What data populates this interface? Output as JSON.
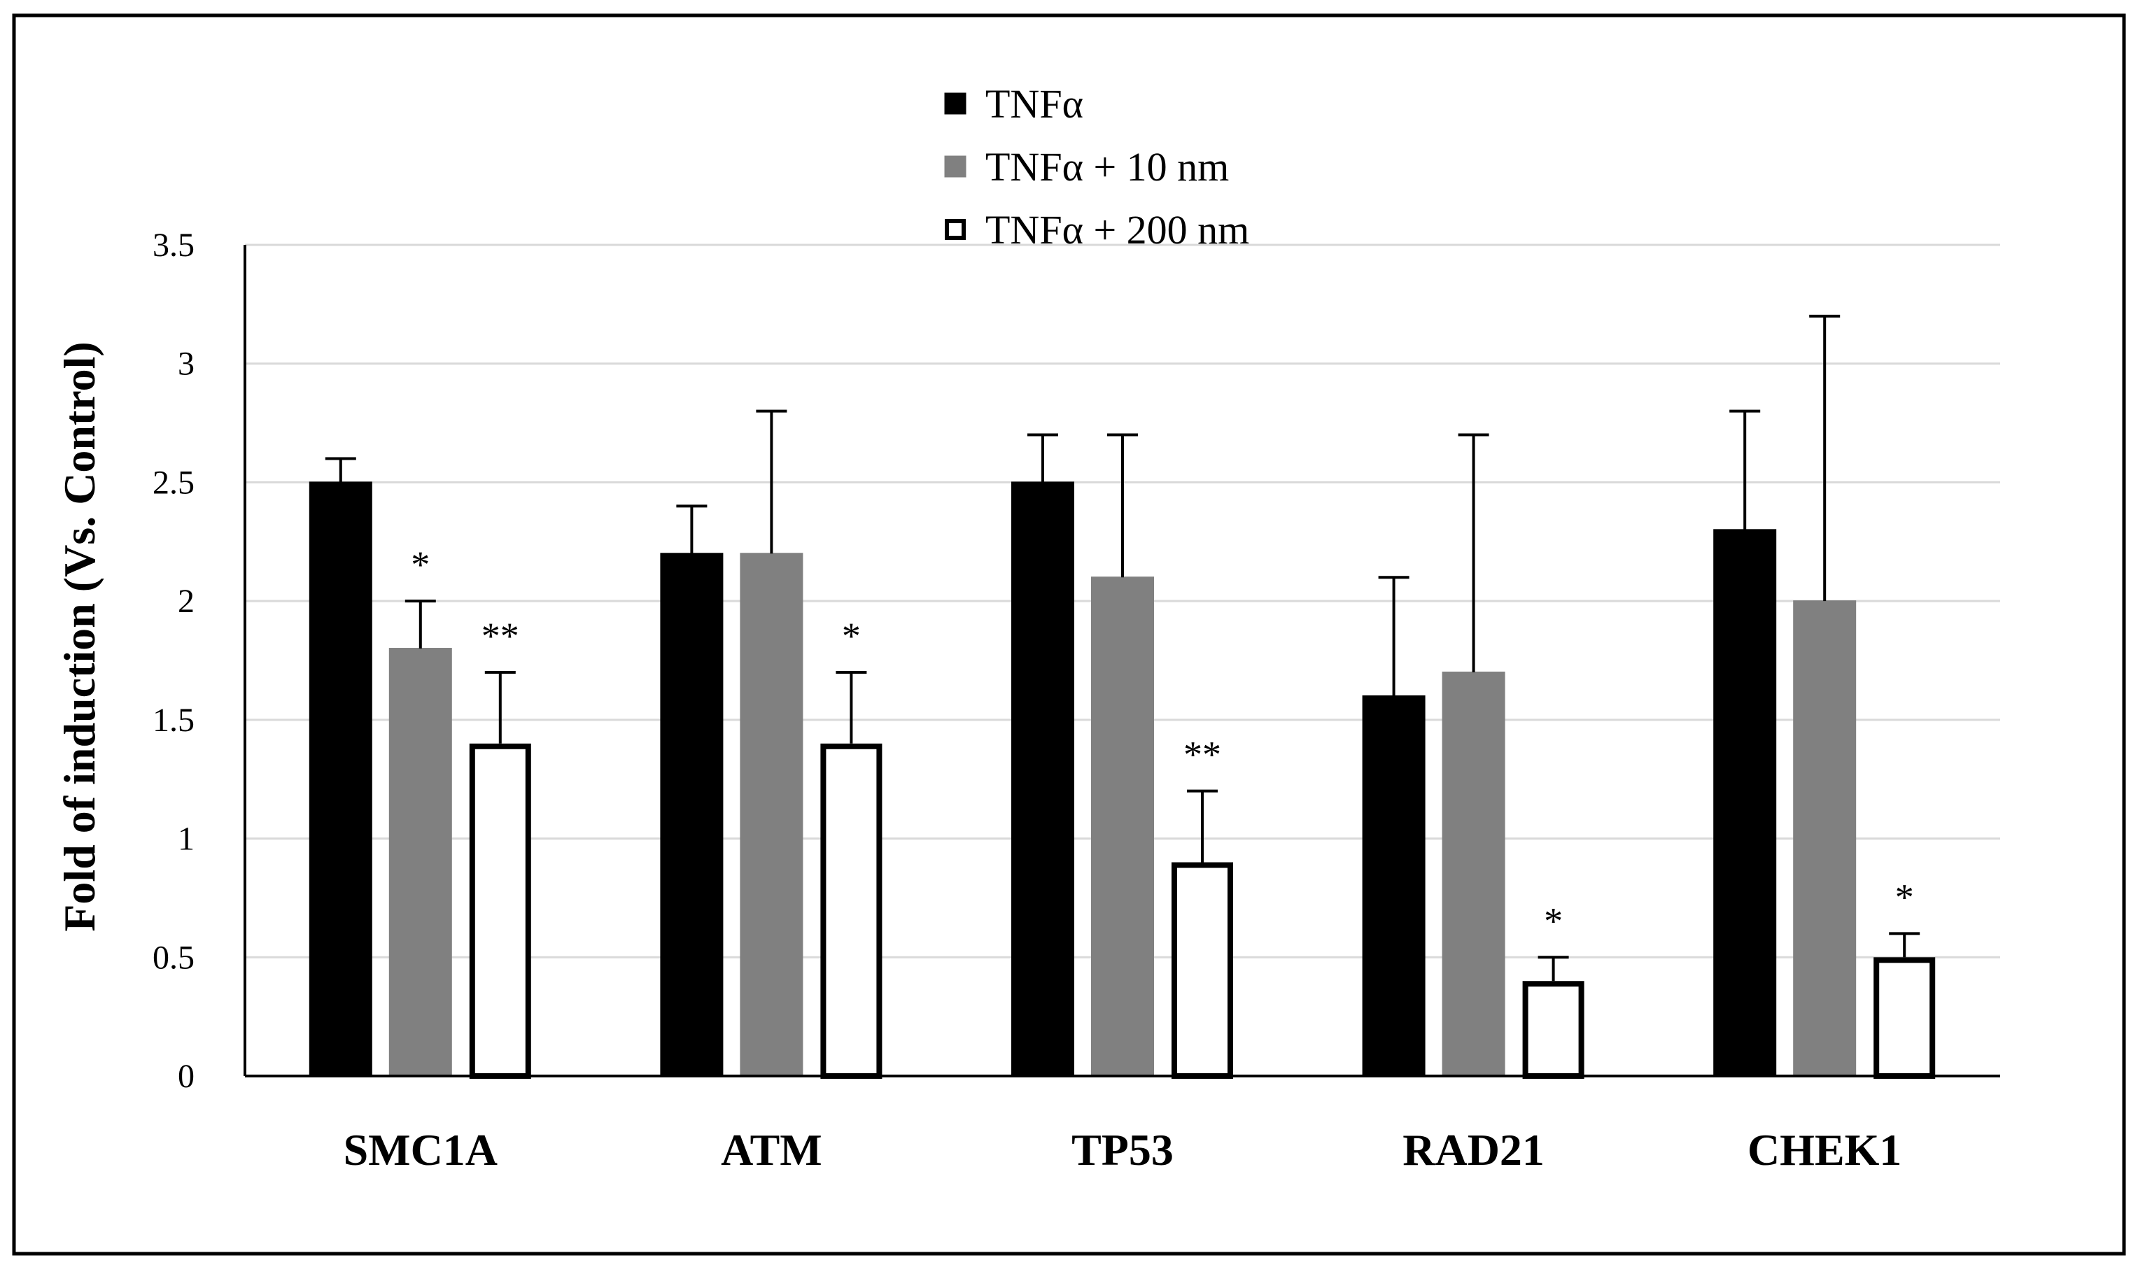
{
  "chart_data": {
    "type": "bar",
    "title": "",
    "xlabel": "",
    "ylabel": "Fold of induction (Vs. Control)",
    "ylim": [
      0,
      3.5
    ],
    "yticks": [
      0,
      0.5,
      1,
      1.5,
      2,
      2.5,
      3,
      3.5
    ],
    "ytick_labels": [
      "0",
      "0.5",
      "1",
      "1.5",
      "2",
      "2.5",
      "3",
      "3.5"
    ],
    "grid": "horizontal",
    "legend_position": "top-center",
    "categories": [
      "SMC1A",
      "ATM",
      "TP53",
      "RAD21",
      "CHEK1"
    ],
    "series": [
      {
        "name": "TNFα",
        "fill": "#000000",
        "stroke": "#000000",
        "values": [
          2.5,
          2.2,
          2.5,
          1.6,
          2.3
        ],
        "errors": [
          0.1,
          0.2,
          0.2,
          0.5,
          0.5
        ],
        "annotations": [
          "",
          "",
          "",
          "",
          ""
        ]
      },
      {
        "name": "TNFα + 10 nm",
        "fill": "#808080",
        "stroke": "#808080",
        "values": [
          1.8,
          2.2,
          2.1,
          1.7,
          2.0
        ],
        "errors": [
          0.2,
          0.6,
          0.6,
          1.0,
          1.2
        ],
        "annotations": [
          "*",
          "",
          "",
          "",
          ""
        ]
      },
      {
        "name": "TNFα + 200 nm",
        "fill": "#ffffff",
        "stroke": "#000000",
        "values": [
          1.4,
          1.4,
          0.9,
          0.4,
          0.5
        ],
        "errors": [
          0.3,
          0.3,
          0.3,
          0.1,
          0.1
        ],
        "annotations": [
          "**",
          "*",
          "**",
          "*",
          "*"
        ]
      }
    ]
  }
}
